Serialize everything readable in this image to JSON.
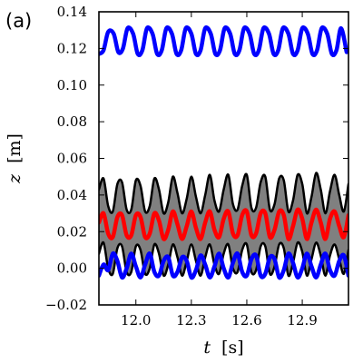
{
  "panel_label": "(a)",
  "chart_data": {
    "type": "line",
    "title": "",
    "xlabel": {
      "var": "t",
      "unit": "[s]"
    },
    "ylabel": {
      "var": "z",
      "unit": "[m]"
    },
    "xlim": [
      11.8,
      13.15
    ],
    "ylim": [
      -0.02,
      0.14
    ],
    "xticks": [
      12.0,
      12.3,
      12.6,
      12.9
    ],
    "xtick_labels": [
      "12.0",
      "12.3",
      "12.6",
      "12.9"
    ],
    "yticks": [
      -0.02,
      0.0,
      0.02,
      0.04,
      0.06,
      0.08,
      0.1,
      0.12,
      0.14
    ],
    "ytick_labels": [
      "−0.02",
      "0.00",
      "0.02",
      "0.04",
      "0.06",
      "0.08",
      "0.10",
      "0.12",
      "0.14"
    ],
    "grid": false,
    "legend": false,
    "fill_between": {
      "lower": "black-lower",
      "upper": "black-upper",
      "color": "#808080"
    },
    "series": [
      {
        "id": "blue-upper",
        "color": "#0000ff",
        "width": 4.5,
        "x": [
          11.8,
          11.825,
          11.85,
          11.88,
          11.905,
          11.93,
          11.955,
          11.985,
          12.01,
          12.035,
          12.06,
          12.09,
          12.115,
          12.14,
          12.165,
          12.195,
          12.22,
          12.245,
          12.27,
          12.3,
          12.325,
          12.35,
          12.375,
          12.405,
          12.43,
          12.455,
          12.48,
          12.51,
          12.535,
          12.56,
          12.585,
          12.615,
          12.64,
          12.665,
          12.69,
          12.72,
          12.745,
          12.77,
          12.795,
          12.825,
          12.85,
          12.875,
          12.9,
          12.93,
          12.955,
          12.98,
          13.005,
          13.035,
          13.06,
          13.085,
          13.11,
          13.14
        ],
        "y": [
          0.117,
          0.119,
          0.129,
          0.128,
          0.118,
          0.12,
          0.131,
          0.128,
          0.117,
          0.119,
          0.131,
          0.128,
          0.117,
          0.119,
          0.131,
          0.128,
          0.117,
          0.119,
          0.131,
          0.128,
          0.117,
          0.119,
          0.131,
          0.128,
          0.117,
          0.119,
          0.131,
          0.128,
          0.117,
          0.119,
          0.131,
          0.128,
          0.117,
          0.119,
          0.131,
          0.128,
          0.117,
          0.119,
          0.131,
          0.128,
          0.117,
          0.119,
          0.131,
          0.128,
          0.117,
          0.119,
          0.131,
          0.128,
          0.117,
          0.119,
          0.131,
          0.118
        ]
      },
      {
        "id": "black-upper",
        "color": "#000000",
        "width": 2.5,
        "x": [
          11.8,
          11.825,
          11.85,
          11.875,
          11.9,
          11.925,
          11.95,
          11.975,
          12.0,
          12.025,
          12.05,
          12.075,
          12.1,
          12.125,
          12.15,
          12.175,
          12.2,
          12.225,
          12.25,
          12.275,
          12.3,
          12.325,
          12.35,
          12.375,
          12.4,
          12.425,
          12.45,
          12.475,
          12.5,
          12.525,
          12.55,
          12.575,
          12.6,
          12.625,
          12.65,
          12.675,
          12.7,
          12.725,
          12.75,
          12.775,
          12.8,
          12.825,
          12.85,
          12.875,
          12.9,
          12.925,
          12.95,
          12.975,
          13.0,
          13.025,
          13.05,
          13.075,
          13.1,
          13.125,
          13.15
        ],
        "y": [
          0.043,
          0.049,
          0.034,
          0.031,
          0.046,
          0.047,
          0.032,
          0.032,
          0.048,
          0.045,
          0.031,
          0.034,
          0.049,
          0.043,
          0.03,
          0.036,
          0.05,
          0.041,
          0.03,
          0.038,
          0.05,
          0.039,
          0.03,
          0.04,
          0.051,
          0.037,
          0.031,
          0.043,
          0.051,
          0.035,
          0.032,
          0.045,
          0.051,
          0.033,
          0.033,
          0.047,
          0.05,
          0.032,
          0.035,
          0.049,
          0.048,
          0.031,
          0.037,
          0.051,
          0.046,
          0.03,
          0.039,
          0.052,
          0.043,
          0.03,
          0.042,
          0.051,
          0.04,
          0.031,
          0.046
        ]
      },
      {
        "id": "red",
        "color": "#ff0000",
        "width": 4.5,
        "x": [
          11.8,
          11.825,
          11.85,
          11.875,
          11.9,
          11.925,
          11.95,
          11.975,
          12.0,
          12.025,
          12.05,
          12.075,
          12.1,
          12.125,
          12.15,
          12.175,
          12.2,
          12.225,
          12.25,
          12.275,
          12.3,
          12.325,
          12.35,
          12.375,
          12.4,
          12.425,
          12.45,
          12.475,
          12.5,
          12.525,
          12.55,
          12.575,
          12.6,
          12.625,
          12.65,
          12.675,
          12.7,
          12.725,
          12.75,
          12.775,
          12.8,
          12.825,
          12.85,
          12.875,
          12.9,
          12.925,
          12.95,
          12.975,
          13.0,
          13.025,
          13.05,
          13.075,
          13.1,
          13.125,
          13.15
        ],
        "y": [
          0.025,
          0.03,
          0.019,
          0.017,
          0.028,
          0.029,
          0.018,
          0.018,
          0.029,
          0.028,
          0.017,
          0.019,
          0.03,
          0.026,
          0.016,
          0.021,
          0.031,
          0.024,
          0.016,
          0.023,
          0.031,
          0.022,
          0.016,
          0.025,
          0.031,
          0.021,
          0.017,
          0.027,
          0.031,
          0.019,
          0.018,
          0.029,
          0.031,
          0.018,
          0.019,
          0.03,
          0.03,
          0.017,
          0.021,
          0.031,
          0.029,
          0.016,
          0.023,
          0.032,
          0.027,
          0.016,
          0.025,
          0.032,
          0.025,
          0.016,
          0.027,
          0.031,
          0.023,
          0.017,
          0.029
        ]
      },
      {
        "id": "black-lower",
        "color": "#000000",
        "width": 2.5,
        "x": [
          11.8,
          11.825,
          11.85,
          11.875,
          11.9,
          11.925,
          11.95,
          11.975,
          12.0,
          12.025,
          12.05,
          12.075,
          12.1,
          12.125,
          12.15,
          12.175,
          12.2,
          12.225,
          12.25,
          12.275,
          12.3,
          12.325,
          12.35,
          12.375,
          12.4,
          12.425,
          12.45,
          12.475,
          12.5,
          12.525,
          12.55,
          12.575,
          12.6,
          12.625,
          12.65,
          12.675,
          12.7,
          12.725,
          12.75,
          12.775,
          12.8,
          12.825,
          12.85,
          12.875,
          12.9,
          12.925,
          12.95,
          12.975,
          13.0,
          13.025,
          13.05,
          13.075,
          13.1,
          13.125,
          13.15
        ],
        "y": [
          0.008,
          0.014,
          0.0,
          -0.003,
          0.011,
          0.012,
          -0.002,
          -0.002,
          0.012,
          0.01,
          -0.003,
          0.0,
          0.013,
          0.008,
          -0.004,
          0.002,
          0.013,
          0.006,
          -0.004,
          0.004,
          0.013,
          0.004,
          -0.004,
          0.006,
          0.013,
          0.002,
          -0.003,
          0.008,
          0.013,
          0.0,
          -0.002,
          0.01,
          0.013,
          -0.002,
          -0.001,
          0.012,
          0.012,
          -0.003,
          0.001,
          0.013,
          0.011,
          -0.004,
          0.003,
          0.014,
          0.009,
          -0.004,
          0.005,
          0.014,
          0.007,
          -0.004,
          0.007,
          0.013,
          0.005,
          -0.003,
          0.01
        ]
      },
      {
        "id": "blue-lower",
        "color": "#0000ff",
        "width": 4.5,
        "x": [
          11.8,
          11.825,
          11.85,
          11.875,
          11.9,
          11.925,
          11.95,
          11.975,
          12.0,
          12.025,
          12.05,
          12.075,
          12.1,
          12.125,
          12.15,
          12.175,
          12.2,
          12.225,
          12.25,
          12.275,
          12.3,
          12.325,
          12.35,
          12.375,
          12.4,
          12.425,
          12.45,
          12.475,
          12.5,
          12.525,
          12.55,
          12.575,
          12.6,
          12.625,
          12.65,
          12.675,
          12.7,
          12.725,
          12.75,
          12.775,
          12.8,
          12.825,
          12.85,
          12.875,
          12.9,
          12.925,
          12.95,
          12.975,
          13.0,
          13.025,
          13.05,
          13.075,
          13.1,
          13.125,
          13.15
        ],
        "y": [
          -0.004,
          0.002,
          -0.001,
          0.008,
          0.004,
          -0.005,
          0.0,
          0.008,
          0.001,
          -0.005,
          0.002,
          0.008,
          -0.002,
          -0.004,
          0.004,
          0.006,
          -0.004,
          -0.002,
          0.006,
          0.004,
          -0.005,
          -0.001,
          0.007,
          0.002,
          -0.005,
          0.001,
          0.008,
          0.0,
          -0.005,
          0.003,
          0.008,
          -0.002,
          -0.004,
          0.005,
          0.007,
          -0.004,
          -0.003,
          0.006,
          0.005,
          -0.005,
          -0.001,
          0.008,
          0.003,
          -0.005,
          0.0,
          0.008,
          0.001,
          -0.005,
          0.002,
          0.008,
          -0.001,
          -0.004,
          0.004,
          0.007,
          -0.004
        ]
      }
    ]
  }
}
